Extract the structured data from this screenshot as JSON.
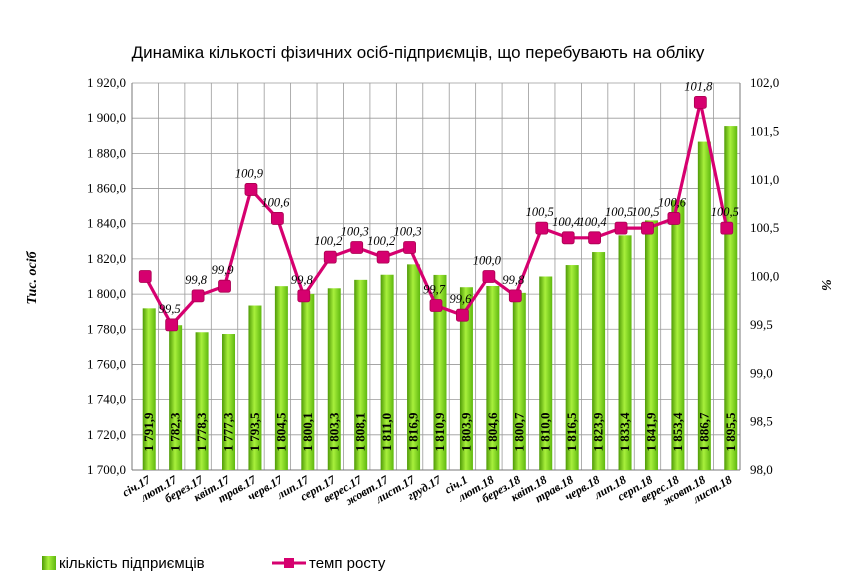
{
  "chart_data": {
    "type": "bar+line",
    "title": "Динаміка кількості фізичних осіб-підприємців, що перебувають на обліку",
    "categories": [
      "січ.17",
      "лют.17",
      "берез.17",
      "квіт.17",
      "трав.17",
      "черв.17",
      "лип.17",
      "серп.17",
      "верес.17",
      "жовт.17",
      "лист.17",
      "груд.17",
      "січ.1",
      "лют.18",
      "берез.18",
      "квіт.18",
      "трав.18",
      "черв.18",
      "лип.18",
      "серп.18",
      "верес.18",
      "жовт.18",
      "лист.18"
    ],
    "series": [
      {
        "name": "кількість підприємців",
        "type": "bar",
        "axis": "left",
        "color": "#7ed321",
        "values": [
          1791.9,
          1782.3,
          1778.3,
          1777.3,
          1793.5,
          1804.5,
          1800.1,
          1803.3,
          1808.1,
          1811.0,
          1816.9,
          1810.9,
          1803.9,
          1804.6,
          1800.7,
          1810.0,
          1816.5,
          1823.9,
          1833.4,
          1841.9,
          1853.4,
          1886.7,
          1895.5
        ],
        "labels": [
          "1 791,9",
          "1 782,3",
          "1 778,3",
          "1 777,3",
          "1 793,5",
          "1 804,5",
          "1 800,1",
          "1 803,3",
          "1 808,1",
          "1 811,0",
          "1 816,9",
          "1 810,9",
          "1 803,9",
          "1 804,6",
          "1 800,7",
          "1 810,0",
          "1 816,5",
          "1 823,9",
          "1 833,4",
          "1 841,9",
          "1 853,4",
          "1 886,7",
          "1 895,5"
        ]
      },
      {
        "name": "темп росту",
        "type": "line",
        "axis": "right",
        "color": "#d6006f",
        "values": [
          100.0,
          99.5,
          99.8,
          99.9,
          100.9,
          100.6,
          99.8,
          100.2,
          100.3,
          100.2,
          100.3,
          99.7,
          99.6,
          100.0,
          99.8,
          100.5,
          100.4,
          100.4,
          100.5,
          100.5,
          100.6,
          101.8,
          100.5
        ],
        "labels": [
          "",
          "99,5",
          "99,8",
          "99,9",
          "100,9",
          "100,6",
          "99,8",
          "100,2",
          "100,3",
          "100,2",
          "100,3",
          "99,7",
          "99,6",
          "100,0",
          "99,8",
          "100,5",
          "100,4",
          "100,4",
          "100,5",
          "100,5",
          "100,6",
          "101,8",
          "100,5"
        ]
      }
    ],
    "y_left": {
      "label": "Тис. осіб",
      "range": [
        1700,
        1920
      ],
      "ticks": [
        "1 700,0",
        "1 720,0",
        "1 740,0",
        "1 760,0",
        "1 780,0",
        "1 800,0",
        "1 820,0",
        "1 840,0",
        "1 860,0",
        "1 880,0",
        "1 900,0",
        "1 920,0"
      ]
    },
    "y_right": {
      "label": "%",
      "range": [
        98.0,
        102.0
      ],
      "ticks": [
        "98,0",
        "98,5",
        "99,0",
        "99,5",
        "100,0",
        "100,5",
        "101,0",
        "101,5",
        "102,0"
      ]
    },
    "grid": true,
    "legend": "bottom"
  }
}
